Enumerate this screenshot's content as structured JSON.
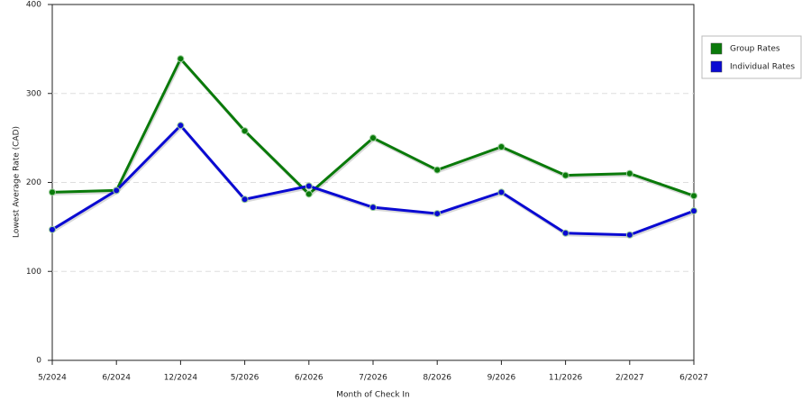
{
  "chart_data": {
    "type": "line",
    "x_label": "Month of Check In",
    "y_label": "Lowest Average Rate (CAD)",
    "categories": [
      "5/2024",
      "6/2024",
      "12/2024",
      "5/2026",
      "6/2026",
      "7/2026",
      "8/2026",
      "9/2026",
      "11/2026",
      "2/2027",
      "6/2027"
    ],
    "series": [
      {
        "name": "Group Rates",
        "color": "#0a7a0a",
        "values": [
          189,
          191,
          339,
          258,
          187,
          250,
          214,
          240,
          208,
          210,
          185
        ]
      },
      {
        "name": "Individual Rates",
        "color": "#0a0ad2",
        "values": [
          147,
          191,
          264,
          181,
          196,
          172,
          165,
          189,
          143,
          141,
          168
        ]
      }
    ],
    "ylim": [
      0,
      400
    ],
    "yticks": [
      0,
      100,
      200,
      300,
      400
    ],
    "grid": true,
    "legend": "right"
  }
}
